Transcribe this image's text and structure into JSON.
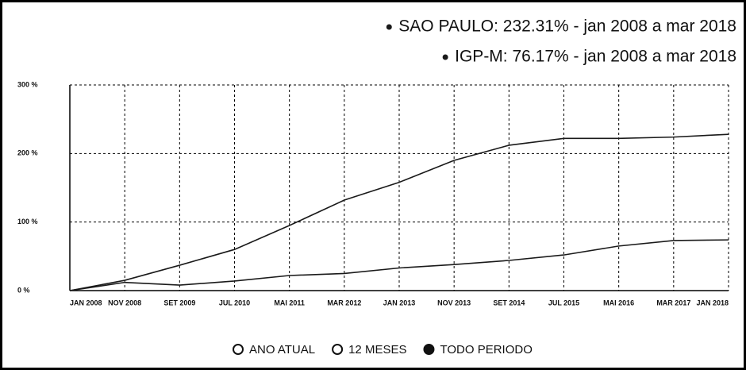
{
  "chart_data": {
    "type": "line",
    "categories": [
      "JAN 2008",
      "NOV 2008",
      "SET 2009",
      "JUL 2010",
      "MAI 2011",
      "MAR 2012",
      "JAN 2013",
      "NOV 2013",
      "SET 2014",
      "JUL 2015",
      "MAI 2016",
      "MAR 2017",
      "JAN 2018"
    ],
    "series": [
      {
        "name": "SAO PAULO: 232.31% - jan 2008 a mar 2018",
        "color": "#1a1a1a",
        "values": [
          0,
          15,
          37,
          60,
          95,
          132,
          158,
          190,
          212,
          222,
          222,
          224,
          228
        ]
      },
      {
        "name": "IGP-M: 76.17% - jan 2008 a mar 2018",
        "color": "#1a1a1a",
        "values": [
          0,
          12,
          8,
          14,
          22,
          25,
          33,
          38,
          44,
          52,
          65,
          73,
          74
        ]
      }
    ],
    "ylim": [
      0,
      300
    ],
    "yticks": [
      {
        "value": 0,
        "label": "0 %"
      },
      {
        "value": 100,
        "label": "100 %"
      },
      {
        "value": 200,
        "label": "200 %"
      },
      {
        "value": 300,
        "label": "300 %"
      }
    ],
    "grid": true
  },
  "period_options": [
    "ANO ATUAL",
    "12 MESES",
    "TODO PERIODO"
  ],
  "selected_option": 2
}
